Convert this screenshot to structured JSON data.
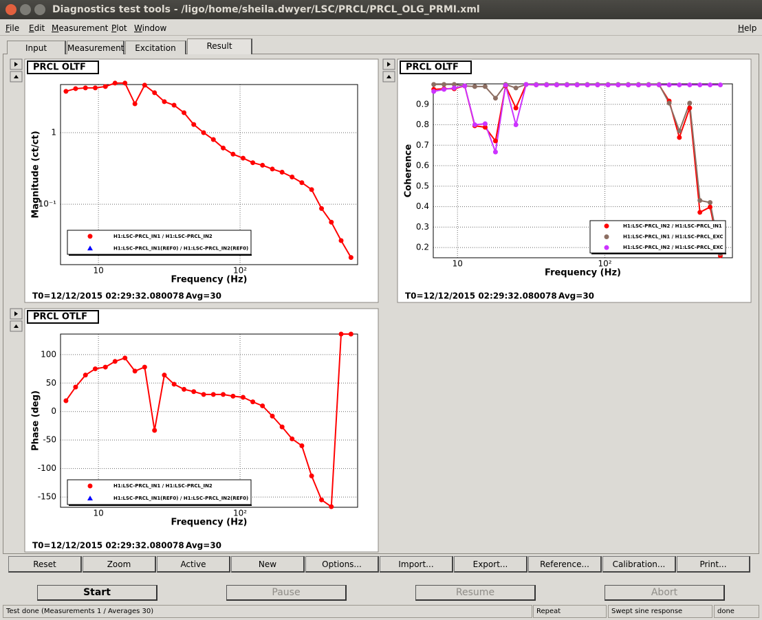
{
  "window": {
    "title": "Diagnostics test tools - /ligo/home/sheila.dwyer/LSC/PRCL/PRCL_OLG_PRMI.xml"
  },
  "menu": [
    "File",
    "Edit",
    "Measurement",
    "Plot",
    "Window",
    "Help"
  ],
  "tabs": [
    "Input",
    "Measurement",
    "Excitation",
    "Result"
  ],
  "tool_buttons": [
    "Reset",
    "Zoom",
    "Active",
    "New",
    "Options...",
    "Import...",
    "Export...",
    "Reference...",
    "Calibration...",
    "Print..."
  ],
  "run_buttons": [
    "Start",
    "Pause",
    "Resume",
    "Abort"
  ],
  "status": [
    "Test done (Measurements 1 / Averages 30)",
    "Repeat",
    "Swept sine response",
    "done"
  ],
  "chart_data": [
    {
      "type": "line",
      "title": "PRCL OLTF",
      "xlabel": "Frequency (Hz)",
      "ylabel": "Magnitude (ct/ct)",
      "xlog": true,
      "ylog": true,
      "grid": true,
      "xlim": [
        5.4,
        676
      ],
      "ylim": [
        0.0143,
        4.7
      ],
      "xticks": [
        10,
        {
          "value": 100,
          "label": "10²"
        }
      ],
      "yticks": [
        {
          "value": 0.1,
          "label": "10⁻¹"
        },
        1
      ],
      "x": [
        5.9,
        6.9,
        8.1,
        9.5,
        11.2,
        13.1,
        15.4,
        18.1,
        21.2,
        24.9,
        29.2,
        34.2,
        40.2,
        47.1,
        55.3,
        64.8,
        76,
        89.2,
        105,
        123,
        144,
        169,
        198,
        233,
        273,
        320,
        376,
        441,
        517,
        607
      ],
      "series": [
        {
          "name": "H1:LSC-PRCL_IN1 / H1:LSC-PRCL_IN2",
          "color": "#ff0000",
          "marker": "circle",
          "values": [
            3.78,
            4.12,
            4.22,
            4.22,
            4.41,
            4.92,
            4.92,
            2.53,
            4.61,
            3.61,
            2.71,
            2.42,
            1.9,
            1.3,
            1.0,
            0.8,
            0.61,
            0.5,
            0.44,
            0.38,
            0.35,
            0.31,
            0.28,
            0.24,
            0.2,
            0.16,
            0.087,
            0.056,
            0.031,
            0.018
          ]
        },
        {
          "name": "H1:LSC-PRCL_IN1(REF0) / H1:LSC-PRCL_IN2(REF0)",
          "color": "#0000ff",
          "marker": "triangle",
          "values": [
            null,
            null,
            null,
            null,
            null,
            null,
            null,
            null,
            null,
            null,
            null,
            null,
            null,
            null,
            null,
            null,
            null,
            null,
            null,
            null,
            null,
            null,
            null,
            null,
            null,
            null,
            null,
            null,
            null,
            null
          ]
        }
      ],
      "t0": "T0=12/12/2015 02:29:32.080078",
      "avg": "Avg=30"
    },
    {
      "type": "line",
      "title": "PRCL OLTF",
      "xlabel": "Frequency (Hz)",
      "ylabel": "Coherence",
      "xlog": true,
      "ylog": false,
      "grid": true,
      "xlim": [
        6.85,
        733
      ],
      "ylim": [
        0.15,
        1.0
      ],
      "xticks": [
        10,
        {
          "value": 100,
          "label": "10²"
        }
      ],
      "yticks": [
        0.2,
        0.3,
        0.4,
        0.5,
        0.6,
        0.7,
        0.8,
        0.9
      ],
      "x": [
        6.9,
        8.1,
        9.5,
        11.2,
        13.1,
        15.4,
        18.1,
        21.2,
        24.9,
        29.2,
        34.2,
        40.2,
        47.1,
        55.3,
        64.8,
        76,
        89.2,
        105,
        123,
        144,
        169,
        198,
        233,
        273,
        320,
        376,
        441,
        517,
        607
      ],
      "series": [
        {
          "name": "H1:LSC-PRCL_IN2 / H1:LSC-PRCL_IN1",
          "color": "#ff0000",
          "marker": "circle",
          "values": [
            0.973,
            0.976,
            0.976,
            0.99,
            0.795,
            0.788,
            0.721,
            0.99,
            0.882,
            0.997,
            0.995,
            0.995,
            0.995,
            0.995,
            0.995,
            0.995,
            0.995,
            0.995,
            0.995,
            0.995,
            0.995,
            0.995,
            0.995,
            0.916,
            0.738,
            0.882,
            0.372,
            0.398,
            0.16
          ]
        },
        {
          "name": "H1:LSC-PRCL_IN1 / H1:LSC-PRCL_EXC",
          "color": "#8c6e62",
          "marker": "circle",
          "values": [
            0.997,
            0.997,
            0.997,
            0.99,
            0.987,
            0.987,
            0.93,
            0.997,
            0.98,
            0.997,
            0.997,
            0.997,
            0.997,
            0.997,
            0.997,
            0.997,
            0.997,
            0.997,
            0.997,
            0.997,
            0.997,
            0.997,
            0.997,
            0.906,
            0.77,
            0.906,
            0.43,
            0.42,
            0.17
          ]
        },
        {
          "name": "H1:LSC-PRCL_IN2 / H1:LSC-PRCL_EXC",
          "color": "#cc33ff",
          "marker": "circle",
          "values": [
            0.963,
            0.973,
            0.98,
            0.99,
            0.8,
            0.805,
            0.667,
            0.993,
            0.8,
            0.997,
            0.995,
            0.995,
            0.995,
            0.995,
            0.995,
            0.995,
            0.995,
            0.995,
            0.995,
            0.995,
            0.995,
            0.995,
            0.995,
            0.995,
            0.995,
            0.995,
            0.995,
            0.995,
            0.995
          ]
        }
      ],
      "t0": "T0=12/12/2015 02:29:32.080078",
      "avg": "Avg=30"
    },
    {
      "type": "line",
      "title": "PRCL OTLF",
      "xlabel": "Frequency (Hz)",
      "ylabel": "Phase (deg)",
      "xlog": true,
      "ylog": false,
      "grid": true,
      "xlim": [
        5.4,
        676
      ],
      "ylim": [
        -168,
        136
      ],
      "xticks": [
        10,
        {
          "value": 100,
          "label": "10²"
        }
      ],
      "yticks": [
        -150,
        -100,
        -50,
        0,
        50,
        100
      ],
      "x": [
        5.9,
        6.9,
        8.1,
        9.5,
        11.2,
        13.1,
        15.4,
        18.1,
        21.2,
        24.9,
        29.2,
        34.2,
        40.2,
        47.1,
        55.3,
        64.8,
        76,
        89.2,
        105,
        123,
        144,
        169,
        198,
        233,
        273,
        320,
        376,
        441,
        517,
        607
      ],
      "series": [
        {
          "name": "H1:LSC-PRCL_IN1 / H1:LSC-PRCL_IN2",
          "color": "#ff0000",
          "marker": "circle",
          "values": [
            19,
            43,
            64,
            75,
            78,
            88,
            94,
            71,
            78,
            -33,
            64,
            48,
            39,
            35,
            30,
            30,
            30,
            27,
            25,
            17,
            10,
            -8,
            -27,
            -48,
            -60,
            -113,
            -155,
            -167,
            136,
            136
          ]
        },
        {
          "name": "H1:LSC-PRCL_IN1(REF0) / H1:LSC-PRCL_IN2(REF0)",
          "color": "#0000ff",
          "marker": "triangle",
          "values": [
            null,
            null,
            null,
            null,
            null,
            null,
            null,
            null,
            null,
            null,
            null,
            null,
            null,
            null,
            null,
            null,
            null,
            null,
            null,
            null,
            null,
            null,
            null,
            null,
            null,
            null,
            null,
            null,
            null,
            null
          ]
        }
      ],
      "t0": "T0=12/12/2015 02:29:32.080078",
      "avg": "Avg=30"
    }
  ]
}
